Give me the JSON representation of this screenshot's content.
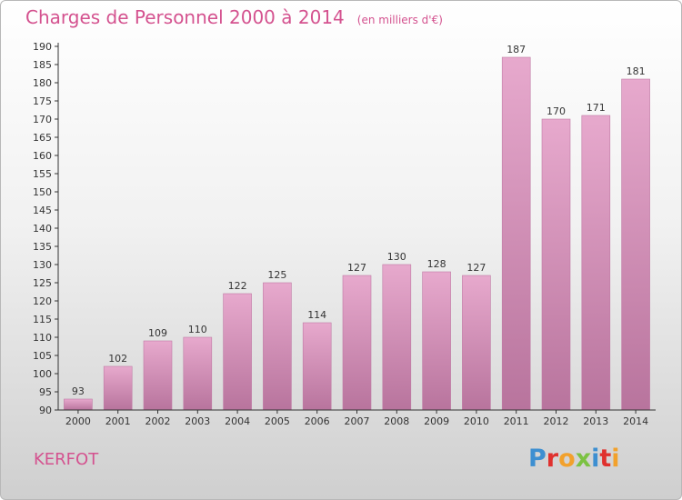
{
  "chart_data": {
    "type": "bar",
    "title": "Charges de Personnel 2000 à 2014",
    "subtitle": "(en milliers d'€)",
    "categories": [
      "2000",
      "2001",
      "2002",
      "2003",
      "2004",
      "2005",
      "2006",
      "2007",
      "2008",
      "2009",
      "2010",
      "2011",
      "2012",
      "2013",
      "2014"
    ],
    "values": [
      93,
      102,
      109,
      110,
      122,
      125,
      114,
      127,
      130,
      128,
      127,
      187,
      170,
      171,
      181
    ],
    "data_labels": [
      "93",
      "102",
      "109",
      "110",
      "122",
      "125",
      "114",
      "127",
      "130",
      "128",
      "127",
      "187",
      "170",
      "171",
      "181"
    ],
    "ylim": [
      90,
      190
    ],
    "yticks": [
      90,
      95,
      100,
      105,
      110,
      115,
      120,
      125,
      130,
      135,
      140,
      145,
      150,
      155,
      160,
      165,
      170,
      175,
      180,
      185,
      190
    ],
    "grid": false,
    "bar_color_top": "#e7a9cd",
    "bar_color_bottom": "#b8749d"
  },
  "footer": {
    "commune": "KERFOT",
    "logo_text": "Proxiti"
  },
  "colors": {
    "accent": "#d4528f",
    "logo_letters": [
      "#3d8fd1",
      "#e0312e",
      "#f2a12c",
      "#7cc243",
      "#3d8fd1",
      "#e0312e",
      "#f2a12c"
    ]
  }
}
